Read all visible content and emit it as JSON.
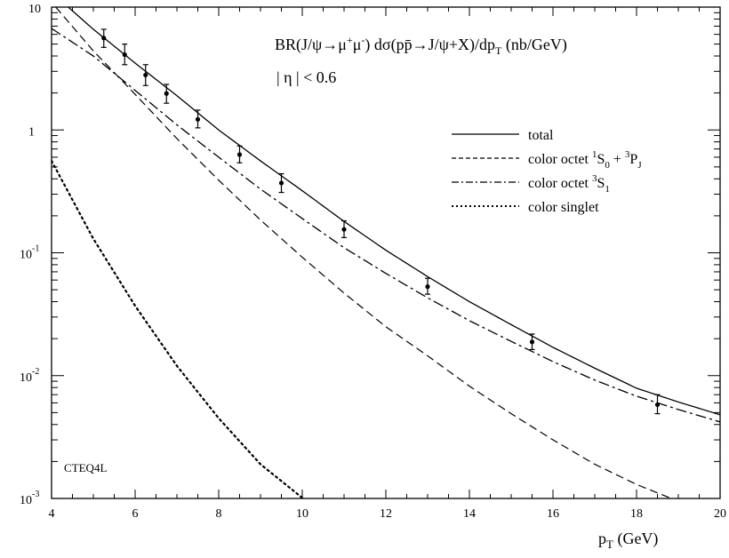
{
  "chart_data": {
    "type": "line",
    "title": "BR(J/ψ→μ⁺μ⁻) dσ(pp̄→J/ψ+X)/dp_T (nb/GeV)",
    "subtitle": "| η | < 0.6",
    "xlabel": "p_T (GeV)",
    "ylabel": "",
    "xlim": [
      4,
      20
    ],
    "ylim": [
      0.001,
      10
    ],
    "yscale": "log",
    "grid": false,
    "legend_position": "top-right",
    "annotation": "CTEQ4L",
    "x_ticks": [
      4,
      6,
      8,
      10,
      12,
      14,
      16,
      18,
      20
    ],
    "x_tick_labels": [
      "4",
      "6",
      "8",
      "10",
      "12",
      "14",
      "16",
      "18",
      "20"
    ],
    "y_ticks": [
      0.001,
      0.01,
      0.1,
      1,
      10
    ],
    "y_tick_labels": [
      {
        "base": "10",
        "exp": "-3"
      },
      {
        "base": "10",
        "exp": "-2"
      },
      {
        "base": "10",
        "exp": "-1"
      },
      {
        "base": "1",
        "exp": ""
      },
      {
        "base": "10",
        "exp": ""
      }
    ],
    "series": [
      {
        "name": "total",
        "style": "solid",
        "x": [
          4.4,
          5,
          6,
          7,
          8,
          9,
          10,
          11,
          12,
          13,
          14,
          15,
          16,
          17,
          18,
          19,
          20
        ],
        "y": [
          10,
          6.6,
          3.5,
          1.9,
          1.0,
          0.56,
          0.32,
          0.18,
          0.105,
          0.064,
          0.04,
          0.026,
          0.017,
          0.0115,
          0.0079,
          0.0061,
          0.0048
        ]
      },
      {
        "name": "color octet ¹S₀ + ³P_J",
        "style": "dashed",
        "x": [
          4.1,
          5,
          6,
          7,
          8,
          9,
          10,
          11,
          12,
          13,
          14,
          15,
          16,
          17,
          18,
          19
        ],
        "y": [
          10,
          4.4,
          1.95,
          0.85,
          0.39,
          0.185,
          0.092,
          0.047,
          0.025,
          0.0145,
          0.0082,
          0.0049,
          0.003,
          0.0019,
          0.0013,
          0.00095
        ]
      },
      {
        "name": "color octet ³S₁",
        "style": "dashdot",
        "x": [
          4,
          5,
          6,
          7,
          8,
          9,
          10,
          11,
          12,
          13,
          14,
          15,
          16,
          17,
          18,
          19,
          20
        ],
        "y": [
          6.7,
          4.0,
          2.1,
          1.1,
          0.6,
          0.33,
          0.19,
          0.11,
          0.068,
          0.043,
          0.028,
          0.019,
          0.013,
          0.0092,
          0.0068,
          0.0053,
          0.0042
        ]
      },
      {
        "name": "color singlet",
        "style": "dotted",
        "x": [
          4,
          5,
          6,
          7,
          8,
          9,
          10.1
        ],
        "y": [
          0.56,
          0.13,
          0.037,
          0.012,
          0.0045,
          0.0019,
          0.00095
        ]
      }
    ],
    "data_points": [
      {
        "x": 5.25,
        "y": 5.6,
        "ylo": 4.7,
        "yhi": 6.6
      },
      {
        "x": 5.75,
        "y": 4.1,
        "ylo": 3.4,
        "yhi": 5.0
      },
      {
        "x": 6.25,
        "y": 2.8,
        "ylo": 2.3,
        "yhi": 3.4
      },
      {
        "x": 6.75,
        "y": 1.98,
        "ylo": 1.65,
        "yhi": 2.35
      },
      {
        "x": 7.5,
        "y": 1.22,
        "ylo": 1.04,
        "yhi": 1.45
      },
      {
        "x": 8.5,
        "y": 0.63,
        "ylo": 0.54,
        "yhi": 0.74
      },
      {
        "x": 9.5,
        "y": 0.37,
        "ylo": 0.31,
        "yhi": 0.44
      },
      {
        "x": 11,
        "y": 0.155,
        "ylo": 0.133,
        "yhi": 0.182
      },
      {
        "x": 13,
        "y": 0.053,
        "ylo": 0.046,
        "yhi": 0.062
      },
      {
        "x": 15.5,
        "y": 0.0188,
        "ylo": 0.0163,
        "yhi": 0.0218
      },
      {
        "x": 18.5,
        "y": 0.0058,
        "ylo": 0.0049,
        "yhi": 0.007
      }
    ]
  }
}
